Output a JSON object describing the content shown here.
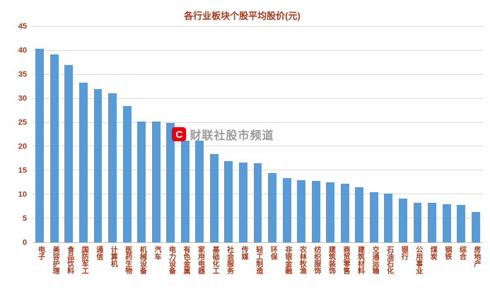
{
  "chart_data": {
    "type": "bar",
    "title": "各行业板块个股平均股价(元)",
    "xlabel": "",
    "ylabel": "",
    "ylim": [
      0,
      45
    ],
    "ytick_step": 5,
    "grid": true,
    "legend": "none",
    "categories": [
      "电子",
      "美容护理",
      "食品饮料",
      "国防军工",
      "通信",
      "计算机",
      "医药生物",
      "机械设备",
      "汽车",
      "电力设备",
      "有色金属",
      "家用电器",
      "基础化工",
      "社会服务",
      "传媒",
      "轻工制造",
      "环保",
      "非银金融",
      "农林牧渔",
      "纺织服饰",
      "建筑装饰",
      "商贸零售",
      "建筑材料",
      "交通运输",
      "石油石化",
      "银行",
      "公用事业",
      "煤炭",
      "钢铁",
      "综合",
      "房地产"
    ],
    "values": [
      40.5,
      39.2,
      37.0,
      33.3,
      32.0,
      31.2,
      28.5,
      25.3,
      25.3,
      25.0,
      21.3,
      21.2,
      18.5,
      17.0,
      16.7,
      16.5,
      14.5,
      13.5,
      13.0,
      12.8,
      12.5,
      12.2,
      11.5,
      10.5,
      10.2,
      9.2,
      8.3,
      8.2,
      8.0,
      7.8,
      6.3
    ]
  },
  "watermark": {
    "logo_letter": "C",
    "text": "财联社股市频道"
  },
  "colors": {
    "bar": "#5B9BD5",
    "title_text": "#A33B1C",
    "axis_text": "#A33B1C",
    "grid": "#D9D9D9",
    "axis_line": "#BFBFBF",
    "watermark_red": "#E60012",
    "watermark_text": "#9A9A9A"
  }
}
